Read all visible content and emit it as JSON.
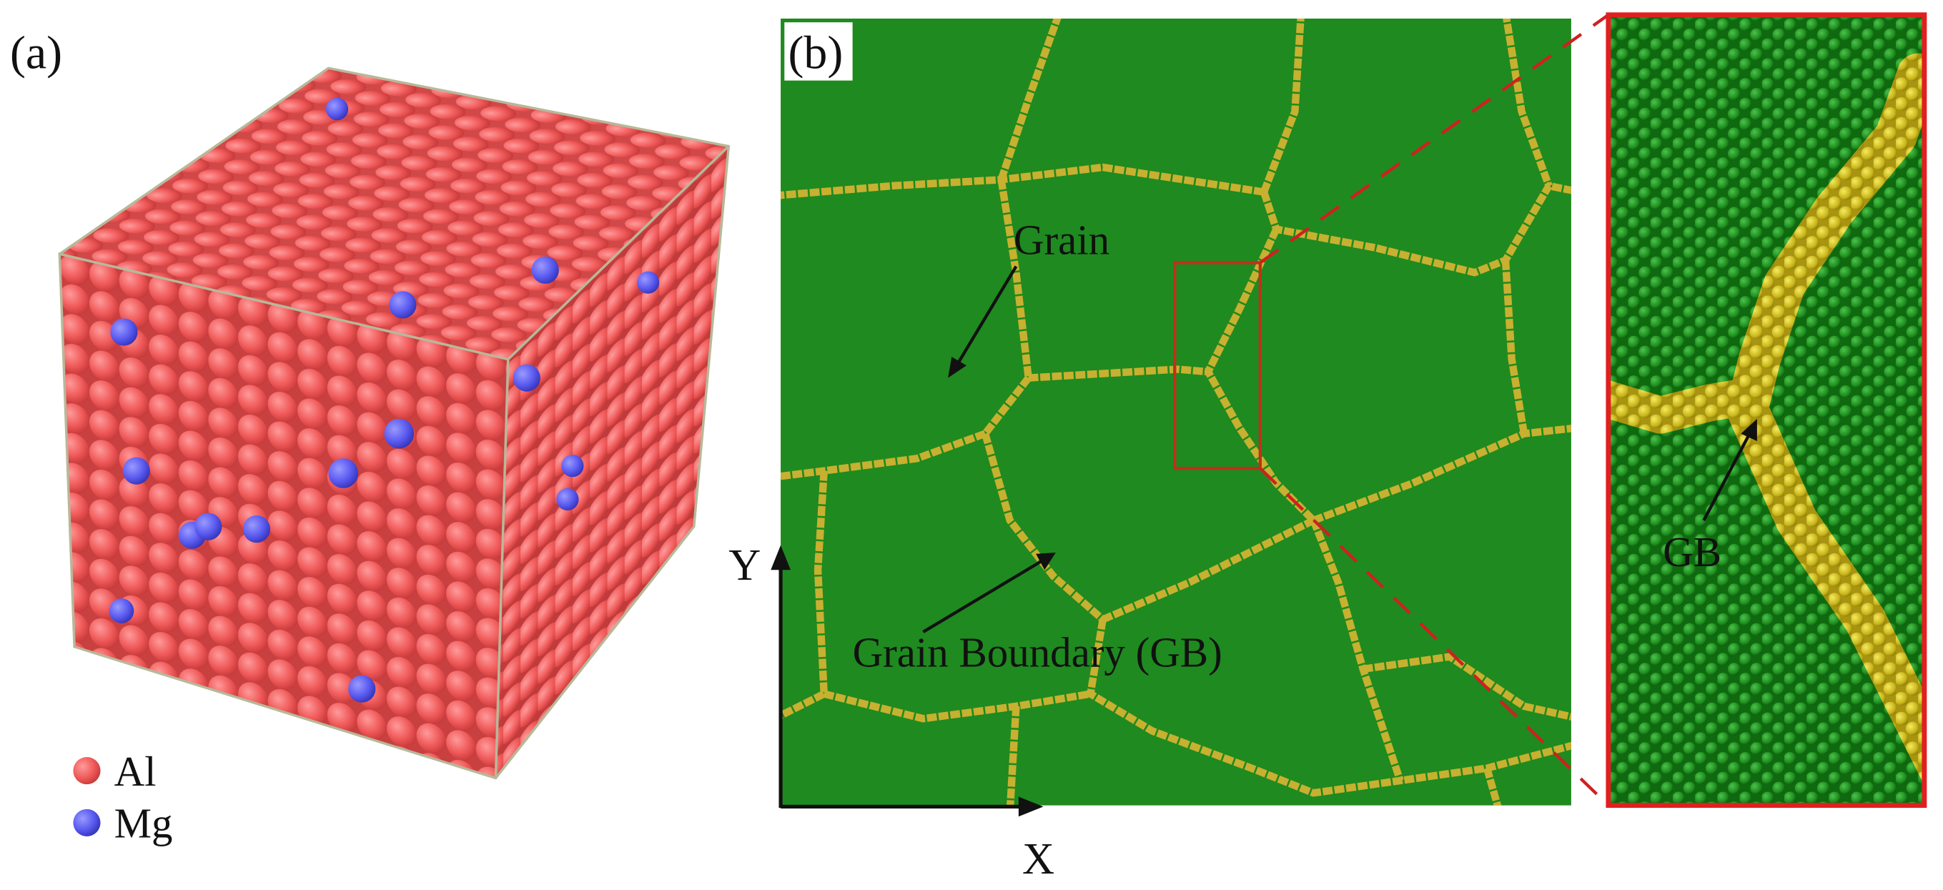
{
  "panel_a": {
    "label": "(a)",
    "legend": [
      "Al",
      "Mg"
    ]
  },
  "panel_b": {
    "label": "(b)",
    "annotations": [
      "Grain",
      "Grain Boundary (GB)"
    ],
    "axes": [
      "Y",
      "X"
    ]
  },
  "inset": {
    "annotation": "GB"
  }
}
